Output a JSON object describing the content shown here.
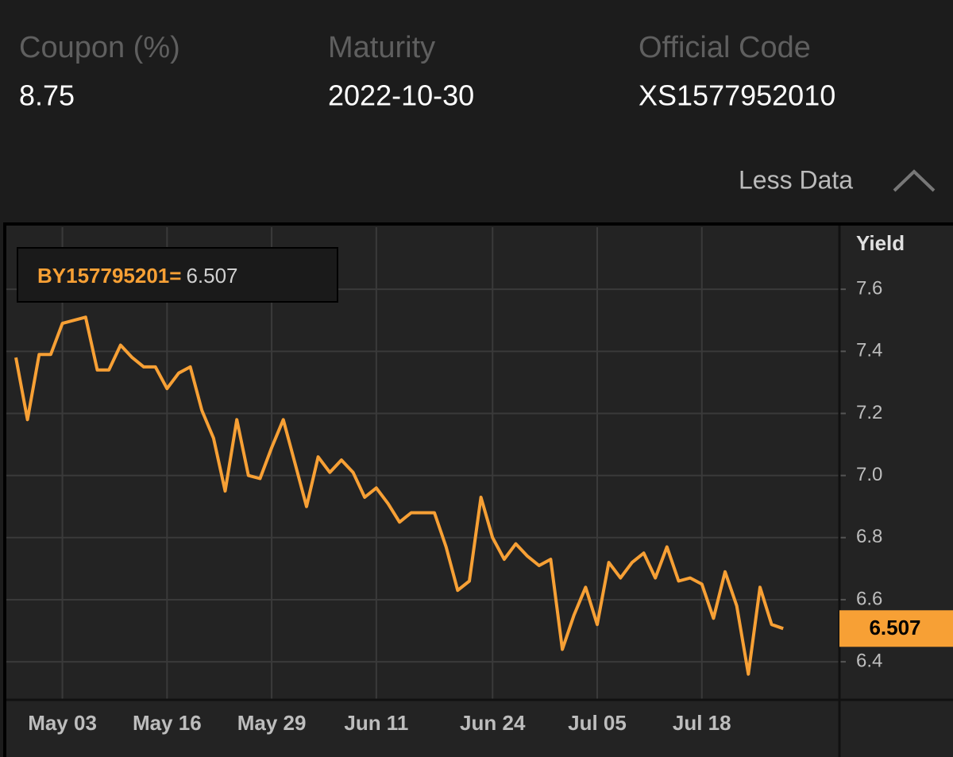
{
  "header": {
    "fields": [
      {
        "label": "Coupon (%)",
        "value": "8.75"
      },
      {
        "label": "Maturity",
        "value": "2022-10-30"
      },
      {
        "label": "Official Code",
        "value": "XS1577952010"
      }
    ],
    "toggle": "Less Data"
  },
  "chart_data": {
    "type": "line",
    "ylabel": "Yield",
    "categories": [
      null,
      null,
      null,
      null,
      "May 03",
      null,
      null,
      null,
      null,
      null,
      null,
      null,
      null,
      "May 16",
      null,
      null,
      null,
      null,
      null,
      null,
      null,
      null,
      "May 29",
      null,
      null,
      null,
      null,
      null,
      null,
      null,
      null,
      "Jun 11",
      null,
      null,
      null,
      null,
      null,
      null,
      null,
      null,
      null,
      "Jun 24",
      null,
      null,
      null,
      null,
      null,
      null,
      null,
      null,
      "Jul 05",
      null,
      null,
      null,
      null,
      null,
      null,
      null,
      null,
      "Jul 18",
      null,
      null,
      null,
      null,
      null,
      null,
      null
    ],
    "series": [
      {
        "name": "BY157795201=",
        "color": "#f7a035",
        "values": [
          7.38,
          7.18,
          7.39,
          7.39,
          7.49,
          7.5,
          7.51,
          7.34,
          7.34,
          7.42,
          7.38,
          7.35,
          7.35,
          7.28,
          7.33,
          7.35,
          7.21,
          7.12,
          6.95,
          7.18,
          7.0,
          6.99,
          7.09,
          7.18,
          7.04,
          6.9,
          7.06,
          7.01,
          7.05,
          7.01,
          6.93,
          6.96,
          6.91,
          6.85,
          6.88,
          6.88,
          6.88,
          6.77,
          6.63,
          6.66,
          6.93,
          6.8,
          6.73,
          6.78,
          6.74,
          6.71,
          6.73,
          6.44,
          6.55,
          6.64,
          6.52,
          6.72,
          6.67,
          6.72,
          6.75,
          6.67,
          6.77,
          6.66,
          6.67,
          6.65,
          6.54,
          6.69,
          6.58,
          6.36,
          6.64,
          6.52,
          6.507
        ]
      }
    ],
    "ylim": [
      6.28,
      7.8
    ],
    "yticks": [
      6.4,
      6.6,
      6.8,
      {
        "value": 7,
        "label": "7.0"
      },
      7.2,
      7.4,
      7.6
    ],
    "grid": true
  }
}
